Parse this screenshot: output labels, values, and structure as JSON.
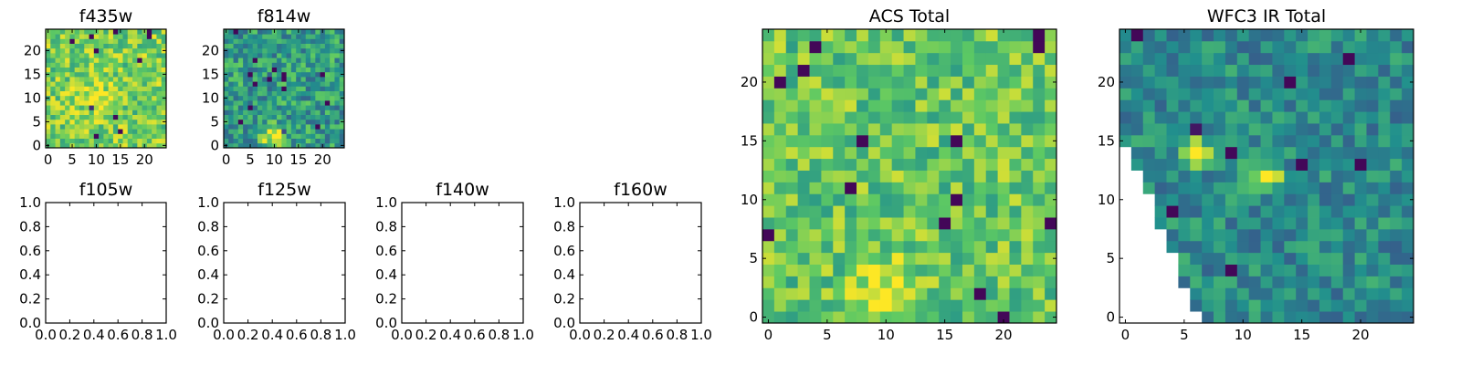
{
  "figure": {
    "colormap": "viridis",
    "colormap_stops": [
      "#440154",
      "#3b528b",
      "#21908d",
      "#5dc963",
      "#fde725"
    ]
  },
  "chart_data": [
    {
      "type": "heatmap",
      "title": "f435w",
      "grid_size": [
        25,
        25
      ],
      "xlim": [
        0,
        24
      ],
      "ylim": [
        0,
        24
      ],
      "xticks": [
        0,
        5,
        10,
        15,
        20
      ],
      "yticks": [
        0,
        5,
        10,
        15,
        20
      ],
      "values": "25x25 noise image; mostly green-yellow, brighter yellow cluster near x=10,y=10"
    },
    {
      "type": "heatmap",
      "title": "f814w",
      "grid_size": [
        25,
        25
      ],
      "xlim": [
        0,
        24
      ],
      "ylim": [
        0,
        24
      ],
      "xticks": [
        0,
        5,
        10,
        15,
        20
      ],
      "yticks": [
        0,
        5,
        10,
        15,
        20
      ],
      "values": "25x25 noise image; teal-green background with a bright yellow source near x=10,y=2"
    },
    {
      "type": "empty",
      "title": "f105w",
      "xlim": [
        0.0,
        1.0
      ],
      "ylim": [
        0.0,
        1.0
      ],
      "xticks": [
        "0.0",
        "0.2",
        "0.4",
        "0.6",
        "0.8",
        "1.0"
      ],
      "yticks": [
        "0.0",
        "0.2",
        "0.4",
        "0.6",
        "0.8",
        "1.0"
      ]
    },
    {
      "type": "empty",
      "title": "f125w",
      "xlim": [
        0.0,
        1.0
      ],
      "ylim": [
        0.0,
        1.0
      ],
      "xticks": [
        "0.0",
        "0.2",
        "0.4",
        "0.6",
        "0.8",
        "1.0"
      ],
      "yticks": [
        "0.0",
        "0.2",
        "0.4",
        "0.6",
        "0.8",
        "1.0"
      ]
    },
    {
      "type": "empty",
      "title": "f140w",
      "xlim": [
        0.0,
        1.0
      ],
      "ylim": [
        0.0,
        1.0
      ],
      "xticks": [
        "0.0",
        "0.2",
        "0.4",
        "0.6",
        "0.8",
        "1.0"
      ],
      "yticks": [
        "0.0",
        "0.2",
        "0.4",
        "0.6",
        "0.8",
        "1.0"
      ]
    },
    {
      "type": "empty",
      "title": "f160w",
      "xlim": [
        0.0,
        1.0
      ],
      "ylim": [
        0.0,
        1.0
      ],
      "xticks": [
        "0.0",
        "0.2",
        "0.4",
        "0.6",
        "0.8",
        "1.0"
      ],
      "yticks": [
        "0.0",
        "0.2",
        "0.4",
        "0.6",
        "0.8",
        "1.0"
      ]
    },
    {
      "type": "heatmap",
      "title": "ACS Total",
      "grid_size": [
        25,
        25
      ],
      "xlim": [
        0,
        24
      ],
      "ylim": [
        0,
        24
      ],
      "xticks": [
        0,
        5,
        10,
        15,
        20
      ],
      "yticks": [
        0,
        5,
        10,
        15,
        20
      ],
      "values": "25x25 noise image; mostly green/yellow with bright yellow patch near x=10,y=2 and scattered dark purple pixels"
    },
    {
      "type": "heatmap",
      "title": "WFC3 IR Total",
      "grid_size": [
        25,
        25
      ],
      "xlim": [
        0,
        24
      ],
      "ylim": [
        0,
        24
      ],
      "xticks": [
        0,
        5,
        10,
        15,
        20
      ],
      "yticks": [
        0,
        5,
        10,
        15,
        20
      ],
      "masked_region": "lower-left triangle left blank (no data)",
      "values": "25x25 noise image; blue-teal-green with two bright yellow patches near (6,14) and (12,12)"
    }
  ]
}
